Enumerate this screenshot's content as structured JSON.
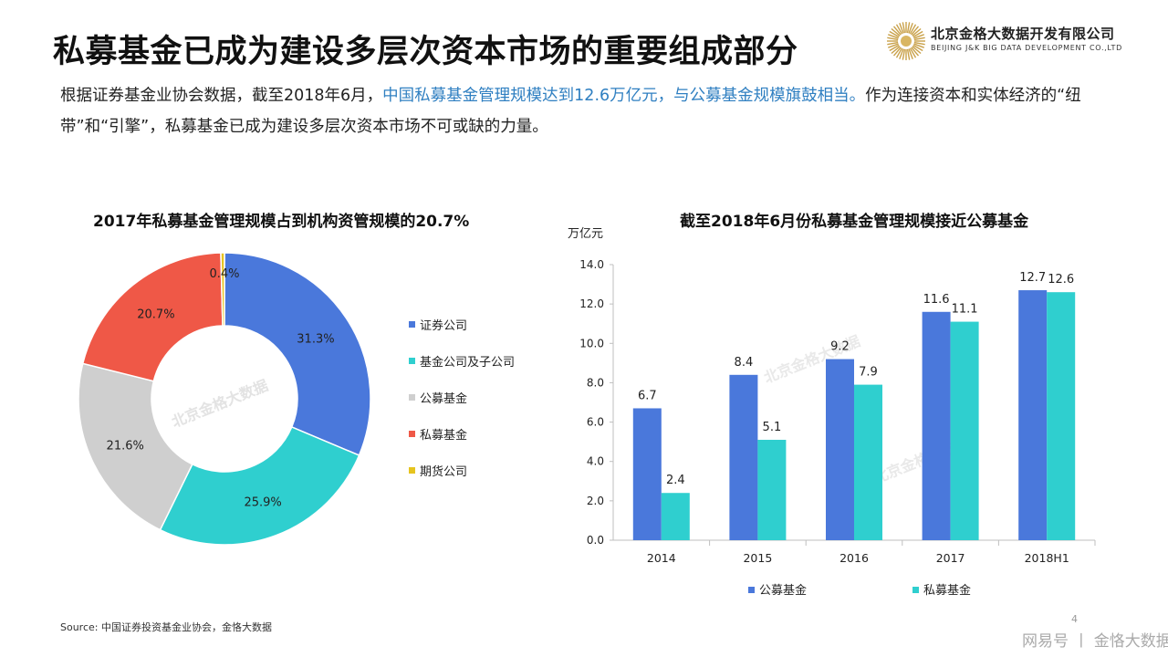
{
  "header": {
    "title": "私募基金已成为建设多层次资本市场的重要组成部分",
    "logo_cn": "北京金格大数据开发有限公司",
    "logo_en": "BEIJING J&K BIG DATA DEVELOPMENT CO.,LTD"
  },
  "intro": {
    "part1": "根据证券基金业协会数据，截至2018年6月，",
    "highlight": "中国私募基金管理规模达到12.6万亿元，与公募基金规模旗鼓相当。",
    "part2": "作为连接资本和实体经济的“纽带”和“引擎”，私募基金已成为建设多层次资本市场不可或缺的力量。"
  },
  "colors": {
    "blue": "#4a78db",
    "cyan": "#2fcfcf",
    "gray": "#cfcfcf",
    "red": "#ef5847",
    "yellow": "#e6c41f",
    "highlight": "#2f7fc1"
  },
  "watermark": "北京金格大数据",
  "chart_data": [
    {
      "type": "pie",
      "title": "2017年私募基金管理规模占到机构资管规模的20.7%",
      "categories": [
        "证券公司",
        "基金公司及子公司",
        "公募基金",
        "私募基金",
        "期货公司"
      ],
      "values": [
        31.3,
        25.9,
        21.6,
        20.7,
        0.4
      ],
      "labels": [
        "31.3%",
        "25.9%",
        "21.6%",
        "20.7%",
        "0.4%"
      ],
      "colors": [
        "#4a78db",
        "#2fcfcf",
        "#cfcfcf",
        "#ef5847",
        "#e6c41f"
      ],
      "legend": "right"
    },
    {
      "type": "bar",
      "title": "截至2018年6月份私募基金管理规模接近公募基金",
      "ylabel": "万亿元",
      "categories": [
        "2014",
        "2015",
        "2016",
        "2017",
        "2018H1"
      ],
      "series": [
        {
          "name": "公募基金",
          "values": [
            6.7,
            8.4,
            9.2,
            11.6,
            12.7
          ],
          "color": "#4a78db"
        },
        {
          "name": "私募基金",
          "values": [
            2.4,
            5.1,
            7.9,
            11.1,
            12.6
          ],
          "color": "#2fcfcf"
        }
      ],
      "ylim": [
        0,
        14
      ],
      "yticks": [
        "0.0",
        "2.0",
        "4.0",
        "6.0",
        "8.0",
        "10.0",
        "12.0",
        "14.0"
      ],
      "legend": "bottom"
    }
  ],
  "footer": {
    "source": "Source: 中国证券投资基金业协会，金恪大数据",
    "page": "4",
    "brand": "网易号 丨 金恪大数据"
  }
}
